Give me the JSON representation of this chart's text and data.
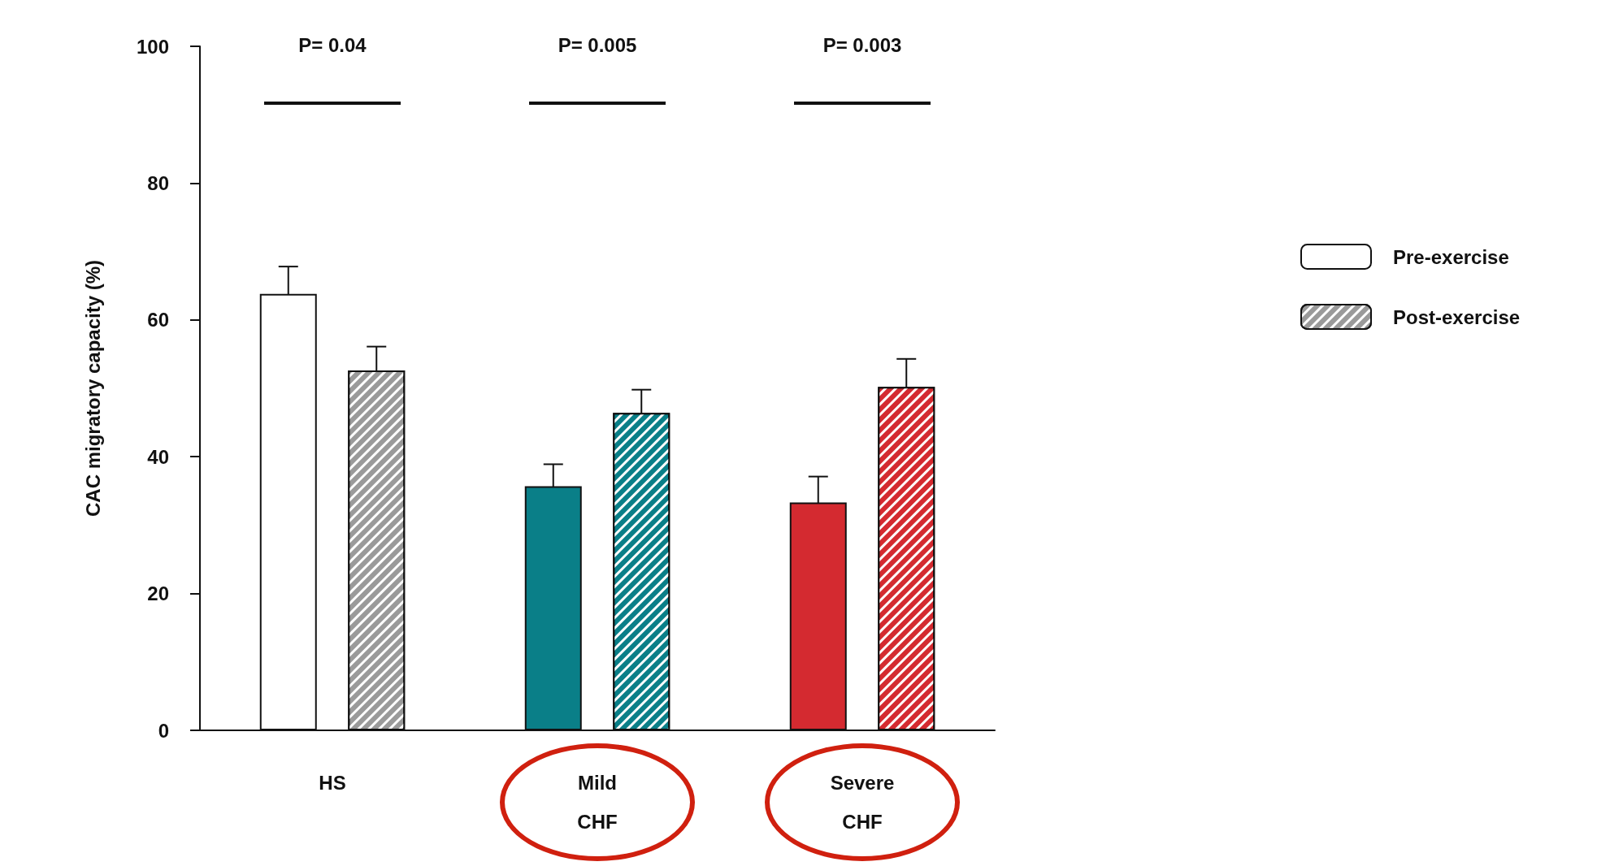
{
  "chart_data": {
    "type": "bar",
    "ylabel": "CAC migratory capacity (%)",
    "categories": [
      "HS",
      "Mild\nCHF",
      "Severe\nCHF"
    ],
    "series": [
      {
        "name": "Pre-exercise",
        "color": "#ffffff",
        "colors": [
          "#ffffff",
          "#0a7f88",
          "#d42a30"
        ],
        "values": [
          63.8,
          35.7,
          33.3
        ],
        "errors": [
          4,
          3.2,
          3.8
        ]
      },
      {
        "name": "Post-exercise",
        "color": "#9a9a9a",
        "colors": [
          "#9a9a9a",
          "#0a7f88",
          "#d42a30"
        ],
        "values": [
          52.6,
          46.4,
          50.2
        ],
        "errors": [
          3.5,
          3.4,
          4.1
        ]
      }
    ],
    "ylim": [
      0,
      100
    ],
    "yticks": [
      0,
      20,
      40,
      60,
      80,
      100
    ],
    "grid": false,
    "legend": "right",
    "annotations": [
      "P= 0.04",
      "P= 0.005",
      "P= 0.003"
    ]
  }
}
